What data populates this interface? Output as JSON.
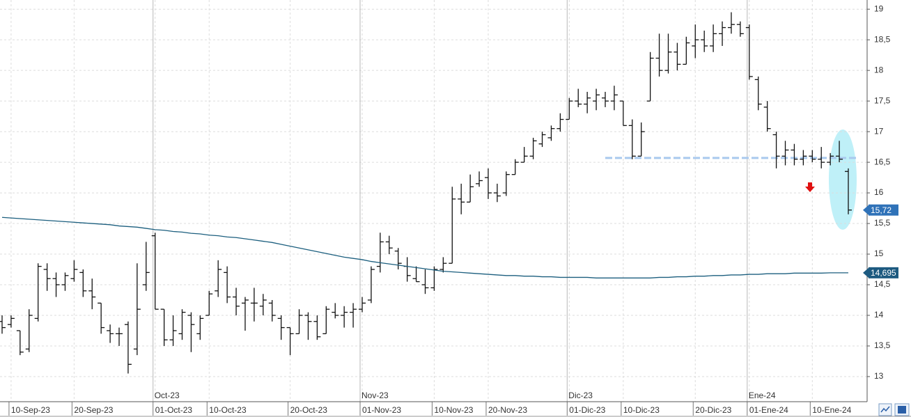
{
  "chart_data": {
    "type": "ohlc",
    "grid": true,
    "ylim": [
      12.59,
      19.15
    ],
    "yticks": [
      13,
      {
        "value": 13.5,
        "label": "13,5"
      },
      14,
      {
        "value": 14.5,
        "label": "14,5"
      },
      15,
      {
        "value": 15.5,
        "label": "15,5"
      },
      16,
      {
        "value": 16.5,
        "label": "16,5"
      },
      17,
      {
        "value": 17.5,
        "label": "17,5"
      },
      18,
      {
        "value": 18.5,
        "label": "18,5"
      },
      19
    ],
    "categories": [
      null,
      "10-Sep-23",
      null,
      null,
      null,
      null,
      null,
      null,
      "20-Sep-23",
      null,
      null,
      null,
      null,
      null,
      null,
      null,
      null,
      "01-Oct-23",
      null,
      null,
      null,
      null,
      null,
      "10-Oct-23",
      null,
      null,
      null,
      null,
      null,
      null,
      null,
      null,
      "20-Oct-23",
      null,
      null,
      null,
      null,
      null,
      null,
      null,
      "01-Nov-23",
      null,
      null,
      null,
      null,
      null,
      null,
      null,
      "10-Nov-23",
      null,
      null,
      null,
      null,
      null,
      "20-Nov-23",
      null,
      null,
      null,
      null,
      null,
      null,
      null,
      null,
      "01-Dic-23",
      null,
      null,
      null,
      null,
      null,
      "10-Dic-23",
      null,
      null,
      null,
      null,
      null,
      null,
      null,
      "20-Dic-23",
      null,
      null,
      null,
      null,
      null,
      "01-Ene-24",
      null,
      null,
      null,
      null,
      null,
      null,
      "10-Ene-24",
      null,
      null,
      null,
      null
    ],
    "month_categories": [
      null,
      null,
      null,
      null,
      null,
      null,
      null,
      null,
      null,
      null,
      null,
      null,
      null,
      null,
      null,
      null,
      null,
      "Oct-23",
      null,
      null,
      null,
      null,
      null,
      null,
      null,
      null,
      null,
      null,
      null,
      null,
      null,
      null,
      null,
      null,
      null,
      null,
      null,
      null,
      null,
      null,
      "Nov-23",
      null,
      null,
      null,
      null,
      null,
      null,
      null,
      null,
      null,
      null,
      null,
      null,
      null,
      null,
      null,
      null,
      null,
      null,
      null,
      null,
      null,
      null,
      "Dic-23",
      null,
      null,
      null,
      null,
      null,
      null,
      null,
      null,
      null,
      null,
      null,
      null,
      null,
      null,
      null,
      null,
      null,
      null,
      null,
      "Ene-24",
      null,
      null,
      null,
      null,
      null,
      null,
      null,
      null,
      null,
      null,
      null
    ],
    "series": [
      {
        "type": "ohlc",
        "color": "#111111",
        "last_value_label": "15,72",
        "open": [
          13.9,
          13.85,
          13.75,
          13.45,
          13.95,
          14.75,
          14.6,
          14.5,
          14.6,
          14.7,
          14.4,
          14.2,
          13.75,
          13.7,
          13.85,
          13.45,
          14.5,
          15.3,
          14.1,
          13.6,
          13.7,
          14.0,
          13.7,
          14.0,
          14.4,
          14.7,
          14.3,
          14.2,
          14.2,
          14.15,
          14.2,
          13.95,
          13.8,
          13.7,
          14.0,
          13.9,
          13.7,
          14.05,
          14.0,
          14.05,
          14.1,
          14.25,
          14.8,
          15.2,
          15.05,
          14.8,
          14.6,
          14.5,
          14.45,
          14.75,
          14.85,
          15.9,
          15.85,
          16.15,
          16.25,
          16.0,
          16.0,
          16.3,
          16.5,
          16.6,
          16.8,
          16.9,
          17.05,
          17.2,
          17.5,
          17.45,
          17.5,
          17.55,
          17.5,
          17.5,
          17.1,
          16.6,
          17.5,
          18.2,
          18.0,
          18.3,
          18.1,
          18.4,
          18.5,
          18.4,
          18.6,
          18.7,
          18.75,
          18.7,
          17.85,
          17.4,
          16.95,
          16.6,
          16.7,
          16.55,
          16.6,
          16.55,
          16.5,
          16.6,
          16.35
        ],
        "high": [
          14.0,
          14.0,
          13.75,
          14.1,
          14.85,
          14.85,
          14.7,
          14.7,
          14.9,
          14.75,
          14.6,
          14.2,
          13.85,
          13.8,
          13.9,
          14.85,
          15.2,
          15.35,
          14.1,
          14.0,
          14.1,
          14.05,
          14.0,
          14.4,
          14.9,
          14.8,
          14.45,
          14.3,
          14.45,
          14.35,
          14.25,
          14.0,
          13.8,
          14.1,
          14.05,
          14.0,
          14.15,
          14.2,
          14.15,
          14.2,
          14.3,
          14.8,
          15.35,
          15.3,
          15.1,
          14.95,
          14.8,
          14.75,
          14.8,
          14.95,
          16.1,
          16.15,
          16.3,
          16.35,
          16.4,
          16.15,
          16.35,
          16.55,
          16.75,
          16.9,
          17.0,
          17.1,
          17.3,
          17.55,
          17.7,
          17.65,
          17.7,
          17.65,
          17.75,
          17.5,
          17.2,
          17.15,
          18.3,
          18.6,
          18.6,
          18.45,
          18.55,
          18.75,
          18.65,
          18.75,
          18.8,
          18.95,
          18.8,
          18.75,
          17.9,
          17.5,
          17.0,
          16.85,
          16.8,
          16.7,
          16.7,
          16.75,
          16.65,
          16.85,
          16.4
        ],
        "low": [
          13.7,
          13.8,
          13.35,
          13.4,
          13.9,
          14.4,
          14.3,
          14.4,
          14.55,
          14.3,
          14.1,
          13.7,
          13.55,
          13.5,
          13.05,
          13.35,
          14.4,
          14.1,
          13.5,
          13.5,
          13.6,
          13.4,
          13.6,
          14.0,
          14.3,
          14.2,
          14.0,
          13.75,
          13.9,
          14.0,
          13.9,
          13.6,
          13.35,
          13.7,
          13.6,
          13.6,
          13.7,
          13.95,
          13.8,
          13.8,
          14.05,
          14.2,
          14.7,
          15.0,
          14.75,
          14.55,
          14.55,
          14.35,
          14.4,
          14.7,
          14.85,
          15.65,
          15.85,
          16.1,
          15.9,
          15.85,
          15.95,
          16.3,
          16.5,
          16.55,
          16.75,
          16.85,
          17.0,
          17.2,
          17.4,
          17.3,
          17.35,
          17.4,
          17.35,
          17.1,
          16.55,
          16.6,
          17.5,
          17.9,
          17.95,
          18.0,
          18.1,
          18.2,
          18.3,
          18.3,
          18.4,
          18.6,
          18.55,
          17.85,
          17.35,
          17.0,
          16.4,
          16.45,
          16.45,
          16.45,
          16.5,
          16.4,
          16.45,
          16.5,
          15.65
        ],
        "close": [
          13.8,
          13.95,
          13.4,
          14.0,
          14.8,
          14.6,
          14.5,
          14.65,
          14.75,
          14.4,
          14.3,
          13.8,
          13.7,
          13.7,
          13.2,
          14.1,
          14.7,
          14.1,
          13.6,
          13.75,
          14.05,
          13.85,
          13.95,
          14.35,
          14.75,
          14.3,
          14.15,
          14.25,
          14.2,
          14.25,
          14.0,
          13.8,
          13.7,
          14.0,
          13.9,
          13.65,
          14.1,
          14.0,
          14.05,
          14.1,
          14.2,
          14.75,
          15.2,
          15.1,
          14.85,
          14.65,
          14.55,
          14.45,
          14.75,
          14.85,
          15.9,
          15.85,
          16.1,
          16.2,
          16.0,
          15.95,
          16.3,
          16.5,
          16.6,
          16.85,
          16.95,
          17.05,
          17.2,
          17.5,
          17.45,
          17.55,
          17.6,
          17.5,
          17.6,
          17.1,
          16.6,
          17.0,
          18.2,
          18.0,
          18.3,
          18.1,
          18.45,
          18.5,
          18.4,
          18.6,
          18.7,
          18.75,
          18.6,
          17.9,
          17.45,
          17.05,
          16.6,
          16.7,
          16.55,
          16.6,
          16.55,
          16.5,
          16.6,
          16.55,
          15.72
        ]
      },
      {
        "type": "line",
        "color": "#1b5e7e",
        "last_value_label": "14,695",
        "values": [
          15.6,
          15.59,
          15.58,
          15.57,
          15.56,
          15.55,
          15.54,
          15.53,
          15.52,
          15.51,
          15.5,
          15.49,
          15.48,
          15.46,
          15.45,
          15.44,
          15.42,
          15.4,
          15.39,
          15.37,
          15.36,
          15.34,
          15.33,
          15.31,
          15.3,
          15.28,
          15.27,
          15.25,
          15.23,
          15.21,
          15.19,
          15.16,
          15.13,
          15.1,
          15.07,
          15.04,
          15.01,
          14.98,
          14.95,
          14.93,
          14.91,
          14.88,
          14.86,
          14.84,
          14.82,
          14.8,
          14.78,
          14.76,
          14.74,
          14.72,
          14.71,
          14.7,
          14.69,
          14.68,
          14.67,
          14.66,
          14.65,
          14.65,
          14.64,
          14.64,
          14.63,
          14.63,
          14.62,
          14.62,
          14.62,
          14.62,
          14.61,
          14.61,
          14.61,
          14.61,
          14.61,
          14.61,
          14.61,
          14.62,
          14.62,
          14.63,
          14.63,
          14.64,
          14.64,
          14.65,
          14.65,
          14.66,
          14.66,
          14.67,
          14.67,
          14.68,
          14.68,
          14.68,
          14.69,
          14.69,
          14.69,
          14.69,
          14.695,
          14.695,
          14.695
        ]
      }
    ],
    "support_level": 16.57,
    "support_color": "#a9c9ee"
  }
}
